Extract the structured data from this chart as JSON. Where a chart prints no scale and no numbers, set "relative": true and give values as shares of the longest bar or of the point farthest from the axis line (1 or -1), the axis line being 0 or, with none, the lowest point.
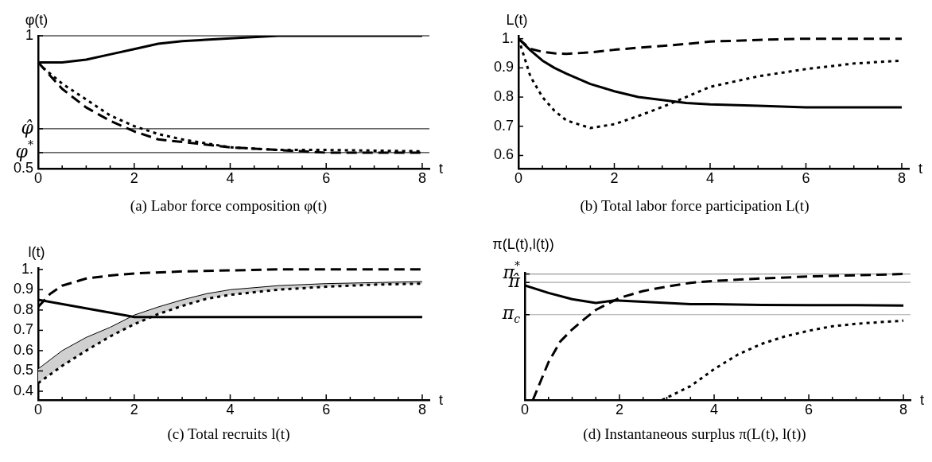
{
  "chart_data": [
    {
      "type": "line",
      "ylabel": "φ(t)",
      "xlabel": "t",
      "annotations": [
        "(a) Labor force composition φ(t)"
      ],
      "xlim": [
        0,
        8.15
      ],
      "xticks": [
        0,
        {
          "value": 0.5,
          "label": null
        },
        {
          "value": 1,
          "label": null
        },
        {
          "value": 1.5,
          "label": null
        },
        2,
        {
          "value": 2.5,
          "label": null
        },
        {
          "value": 3,
          "label": null
        },
        {
          "value": 3.5,
          "label": null
        },
        4,
        {
          "value": 4.5,
          "label": null
        },
        {
          "value": 5,
          "label": null
        },
        {
          "value": 5.5,
          "label": null
        },
        6,
        {
          "value": 6.5,
          "label": null
        },
        {
          "value": 7,
          "label": null
        },
        {
          "value": 7.5,
          "label": null
        },
        8
      ],
      "ylim": [
        0.5,
        1
      ],
      "yticks": [
        0.5,
        1
      ],
      "ref_lines": [
        {
          "axis": "y",
          "value": 1,
          "color": "#000000"
        },
        {
          "axis": "y",
          "value": 0.65,
          "label": "φ̂",
          "color": "#333333"
        },
        {
          "axis": "y",
          "value": 0.56,
          "label": "φ$^{*}$",
          "color": "#333333"
        }
      ],
      "series": [
        {
          "color": "#000000",
          "line_style": "solid",
          "x": [
            0,
            0.5,
            1,
            1.5,
            2,
            2.5,
            3,
            4,
            5,
            6,
            8
          ],
          "values": [
            0.9,
            0.9,
            0.91,
            0.93,
            0.95,
            0.97,
            0.98,
            0.99,
            1,
            1,
            1
          ]
        },
        {
          "color": "#000000",
          "line_style": "dashed",
          "x": [
            0,
            0.5,
            1,
            1.5,
            2,
            2.5,
            3,
            4,
            5,
            6,
            8
          ],
          "values": [
            0.9,
            0.8,
            0.73,
            0.68,
            0.64,
            0.61,
            0.6,
            0.58,
            0.57,
            0.56,
            0.56
          ]
        },
        {
          "color": "#000000",
          "line_style": "dotted",
          "x": [
            0.1,
            0.5,
            1,
            1.5,
            2,
            2.5,
            3,
            4,
            5,
            6,
            8
          ],
          "values": [
            0.88,
            0.82,
            0.76,
            0.7,
            0.66,
            0.63,
            0.61,
            0.58,
            0.57,
            0.57,
            0.565
          ]
        }
      ]
    },
    {
      "type": "line",
      "ylabel": "L(t)",
      "xlabel": "t",
      "annotations": [
        "(b) Total labor force participation L(t)"
      ],
      "xlim": [
        0,
        8.15
      ],
      "xticks": [
        0,
        {
          "value": 0.5,
          "label": null
        },
        {
          "value": 1,
          "label": null
        },
        {
          "value": 1.5,
          "label": null
        },
        2,
        {
          "value": 2.5,
          "label": null
        },
        {
          "value": 3,
          "label": null
        },
        {
          "value": 3.5,
          "label": null
        },
        4,
        {
          "value": 4.5,
          "label": null
        },
        {
          "value": 5,
          "label": null
        },
        {
          "value": 5.5,
          "label": null
        },
        6,
        {
          "value": 6.5,
          "label": null
        },
        {
          "value": 7,
          "label": null
        },
        {
          "value": 7.5,
          "label": null
        },
        8
      ],
      "ylim": [
        0.555,
        1.01
      ],
      "yticks": [
        0.6,
        0.7,
        0.8,
        0.9,
        {
          "value": 1,
          "label": "1."
        }
      ],
      "series": [
        {
          "color": "#000000",
          "line_style": "solid",
          "x": [
            0,
            0.25,
            0.5,
            0.75,
            1,
            1.5,
            2,
            2.5,
            3,
            3.5,
            4,
            5,
            6,
            7,
            8
          ],
          "values": [
            1,
            0.96,
            0.925,
            0.9,
            0.88,
            0.845,
            0.82,
            0.8,
            0.79,
            0.78,
            0.775,
            0.77,
            0.765,
            0.765,
            0.765
          ]
        },
        {
          "color": "#000000",
          "line_style": "dashed",
          "x": [
            0,
            0.25,
            0.5,
            0.75,
            1,
            1.5,
            2,
            2.5,
            3,
            3.5,
            4,
            5,
            6,
            7,
            8
          ],
          "values": [
            1,
            0.965,
            0.955,
            0.95,
            0.948,
            0.953,
            0.962,
            0.969,
            0.975,
            0.982,
            0.99,
            0.996,
            1,
            1,
            1
          ]
        },
        {
          "color": "#000000",
          "line_style": "dotted",
          "x": [
            0,
            0.25,
            0.5,
            0.75,
            1,
            1.5,
            2,
            2.5,
            3,
            3.5,
            4,
            5,
            6,
            7,
            8
          ],
          "values": [
            1,
            0.87,
            0.8,
            0.753,
            0.72,
            0.694,
            0.707,
            0.735,
            0.766,
            0.8,
            0.835,
            0.871,
            0.896,
            0.915,
            0.925
          ]
        }
      ]
    },
    {
      "type": "line",
      "ylabel": "l(t)",
      "xlabel": "t",
      "annotations": [
        "(c) Total recruits l(t)"
      ],
      "xlim": [
        0,
        8.15
      ],
      "xticks": [
        0,
        {
          "value": 0.5,
          "label": null
        },
        {
          "value": 1,
          "label": null
        },
        {
          "value": 1.5,
          "label": null
        },
        2,
        {
          "value": 2.5,
          "label": null
        },
        {
          "value": 3,
          "label": null
        },
        {
          "value": 3.5,
          "label": null
        },
        4,
        {
          "value": 4.5,
          "label": null
        },
        {
          "value": 5,
          "label": null
        },
        {
          "value": 5.5,
          "label": null
        },
        6,
        {
          "value": 6.5,
          "label": null
        },
        {
          "value": 7,
          "label": null
        },
        {
          "value": 7.5,
          "label": null
        },
        8
      ],
      "ylim": [
        0.357,
        1.007
      ],
      "yticks": [
        0.4,
        0.5,
        0.6,
        0.7,
        0.8,
        0.9,
        {
          "value": 1,
          "label": "1."
        }
      ],
      "series": [
        {
          "color": "#000000",
          "line_style": "solid",
          "x": [
            0,
            1.9,
            2,
            4,
            6,
            8
          ],
          "values": [
            0.85,
            0.77,
            0.765,
            0.765,
            0.765,
            0.765
          ]
        },
        {
          "color": "#000000",
          "line_style": "dashed",
          "x": [
            0,
            0.25,
            0.5,
            1,
            1.5,
            2,
            3,
            4,
            5,
            6,
            8
          ],
          "values": [
            0.815,
            0.88,
            0.92,
            0.955,
            0.97,
            0.98,
            0.99,
            0.995,
            1,
            1,
            1
          ]
        },
        {
          "color": "#000000",
          "line_style": "dotted",
          "x": [
            0,
            0.5,
            1,
            1.5,
            2,
            2.5,
            3,
            3.5,
            4,
            5,
            6,
            7,
            8
          ],
          "values": [
            0.44,
            0.525,
            0.6,
            0.67,
            0.73,
            0.78,
            0.82,
            0.855,
            0.875,
            0.9,
            0.915,
            0.925,
            0.93
          ]
        },
        {
          "color": "#000000",
          "line_style": "solid",
          "x": [
            0,
            0.5,
            1,
            1.5,
            2,
            2.5,
            3,
            3.5,
            4,
            5,
            6,
            7,
            8
          ],
          "values": [
            0.51,
            0.6,
            0.665,
            0.715,
            0.775,
            0.815,
            0.85,
            0.88,
            0.9,
            0.92,
            0.93,
            0.935,
            0.94
          ],
          "lower": [
            0.44,
            0.525,
            0.6,
            0.67,
            0.73,
            0.78,
            0.82,
            0.855,
            0.875,
            0.9,
            0.915,
            0.925,
            0.93
          ],
          "upper": [
            0.51,
            0.6,
            0.665,
            0.715,
            0.775,
            0.815,
            0.85,
            0.88,
            0.9,
            0.92,
            0.93,
            0.935,
            0.94
          ]
        }
      ]
    },
    {
      "type": "line",
      "relative": true,
      "ylabel": "π(L(t),l(t))",
      "xlabel": "t",
      "annotations": [
        "(d) Instantaneous surplus π(L(t), l(t))"
      ],
      "xlim": [
        0,
        8.15
      ],
      "xticks": [
        0,
        {
          "value": 0.5,
          "label": null
        },
        {
          "value": 1,
          "label": null
        },
        {
          "value": 1.5,
          "label": null
        },
        2,
        {
          "value": 2.5,
          "label": null
        },
        {
          "value": 3,
          "label": null
        },
        {
          "value": 3.5,
          "label": null
        },
        4,
        {
          "value": 4.5,
          "label": null
        },
        {
          "value": 5,
          "label": null
        },
        {
          "value": 5.5,
          "label": null
        },
        6,
        {
          "value": 6.5,
          "label": null
        },
        {
          "value": 7,
          "label": null
        },
        {
          "value": 7.5,
          "label": null
        },
        8
      ],
      "ref_lines": [
        {
          "axis": "y",
          "value": 1,
          "label": "π$^{*}$",
          "color": "#999999"
        },
        {
          "axis": "y",
          "value": 0.933,
          "label": "π̂",
          "color": "#aaaaaa"
        },
        {
          "axis": "y",
          "value": 0.677,
          "label": "π$_{c}$",
          "color": "#aaaaaa"
        }
      ],
      "series": [
        {
          "color": "#000000",
          "line_style": "solid",
          "x": [
            0,
            0.5,
            1,
            1.5,
            1.9,
            2.5,
            3,
            3.5,
            4,
            5,
            6,
            7,
            8
          ],
          "values": [
            0.91,
            0.85,
            0.8,
            0.77,
            0.79,
            0.78,
            0.77,
            0.76,
            0.76,
            0.755,
            0.753,
            0.752,
            0.75
          ]
        },
        {
          "color": "#000000",
          "line_style": "dashed",
          "x": [
            0.17,
            0.5,
            0.75,
            1,
            1.25,
            1.5,
            2,
            2.5,
            3,
            3.5,
            4,
            5,
            6,
            7,
            8
          ],
          "values": [
            0,
            0.3,
            0.465,
            0.56,
            0.64,
            0.715,
            0.81,
            0.865,
            0.9,
            0.93,
            0.945,
            0.965,
            0.98,
            0.99,
            1
          ]
        },
        {
          "color": "#000000",
          "line_style": "dotted",
          "x": [
            2.9,
            3.5,
            4,
            4.5,
            5,
            5.5,
            6,
            6.5,
            7,
            8
          ],
          "values": [
            0,
            0.11,
            0.245,
            0.36,
            0.445,
            0.505,
            0.55,
            0.585,
            0.605,
            0.63
          ]
        }
      ]
    }
  ]
}
